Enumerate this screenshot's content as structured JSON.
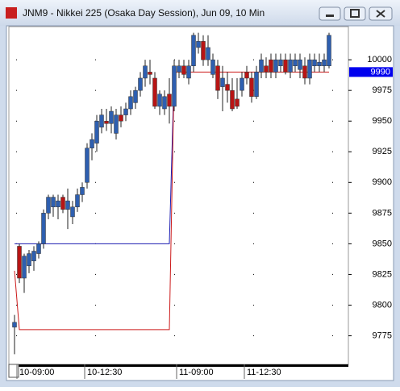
{
  "window_title": "JNM9 - Nikkei 225 (Osaka Day Session), Jun 09, 10 Min",
  "chart_data": {
    "type": "candlestick",
    "categories": [
      null,
      "10-09:00",
      null,
      null,
      null,
      null,
      null,
      null,
      null,
      null,
      null,
      null,
      null,
      null,
      null,
      "10-12:30",
      null,
      null,
      null,
      null,
      null,
      null,
      null,
      null,
      null,
      null,
      null,
      null,
      null,
      null,
      null,
      null,
      null,
      null,
      "11-09:00",
      null,
      null,
      null,
      null,
      null,
      null,
      null,
      null,
      null,
      null,
      null,
      null,
      null,
      "11-12:30",
      null,
      null,
      null,
      null,
      null,
      null,
      null,
      null,
      null,
      null,
      null,
      null,
      null,
      null,
      null,
      null,
      null
    ],
    "open": [
      9782,
      9848,
      9822,
      9832,
      9836,
      9842,
      9850,
      9875,
      9880,
      9880,
      9888,
      9878,
      9872,
      9880,
      9890,
      9900,
      9928,
      9932,
      9945,
      9950,
      9948,
      9940,
      9955,
      9955,
      9960,
      9965,
      9975,
      9985,
      9990,
      9985,
      9962,
      9960,
      9972,
      9962,
      9990,
      9995,
      9985,
      9995,
      10010,
      10015,
      10000,
      9988,
      9995,
      9978,
      9980,
      9975,
      9968,
      9975,
      9990,
      9985,
      9970,
      9990,
      9995,
      10000,
      9990,
      9995,
      10000,
      9990,
      9995,
      9992,
      9995,
      9985,
      9995,
      9995,
      9995,
      9995
    ],
    "high": [
      9792,
      9850,
      9842,
      9845,
      9848,
      9852,
      9878,
      9890,
      9890,
      9890,
      9890,
      9895,
      9885,
      9895,
      9900,
      9932,
      9940,
      9955,
      9960,
      9960,
      9962,
      9960,
      9962,
      9965,
      9975,
      9978,
      9990,
      10000,
      10000,
      9990,
      9975,
      9975,
      9985,
      10000,
      10000,
      10000,
      10000,
      10022,
      10022,
      10020,
      10020,
      10005,
      10000,
      9995,
      9990,
      9985,
      9985,
      9990,
      9995,
      9990,
      9995,
      10005,
      10002,
      10005,
      10005,
      10005,
      10005,
      10005,
      10005,
      10005,
      10002,
      10005,
      10005,
      10005,
      10005,
      10022
    ],
    "low": [
      9760,
      9818,
      9810,
      9826,
      9828,
      9838,
      9846,
      9870,
      9872,
      9870,
      9875,
      9862,
      9866,
      9876,
      9884,
      9895,
      9918,
      9925,
      9940,
      9942,
      9940,
      9935,
      9945,
      9950,
      9955,
      9960,
      9970,
      9978,
      9980,
      9960,
      9955,
      9955,
      9948,
      9958,
      9985,
      9985,
      9980,
      9990,
      10005,
      9995,
      9995,
      9985,
      9968,
      9958,
      9965,
      9958,
      9960,
      9970,
      9980,
      9965,
      9968,
      9985,
      9985,
      9985,
      9985,
      9990,
      9988,
      9985,
      9990,
      9985,
      9980,
      9980,
      9990,
      9990,
      9990,
      9993
    ],
    "close": [
      9786,
      9822,
      9840,
      9842,
      9844,
      9850,
      9875,
      9888,
      9888,
      9885,
      9878,
      9885,
      9880,
      9890,
      9896,
      9928,
      9935,
      9950,
      9955,
      9948,
      9958,
      9955,
      9950,
      9960,
      9970,
      9975,
      9985,
      9995,
      9988,
      9962,
      9972,
      9970,
      9962,
      9995,
      9995,
      9988,
      9995,
      10020,
      10015,
      10000,
      10010,
      10000,
      9975,
      9985,
      9975,
      9960,
      9962,
      9985,
      9985,
      9970,
      9990,
      10000,
      9990,
      9990,
      10000,
      10000,
      9990,
      10000,
      10000,
      10000,
      9985,
      10000,
      10000,
      9998,
      10000,
      10020
    ],
    "up_color": "#2e5fb0",
    "down_color": "#b81414",
    "lines": [
      {
        "color": "#1a1ab0",
        "values": [
          9850,
          9850,
          9850,
          9850,
          9850,
          9850,
          9850,
          9850,
          9850,
          9850,
          9850,
          9850,
          9850,
          9850,
          9850,
          9850,
          9850,
          9850,
          9850,
          9850,
          9850,
          9850,
          9850,
          9850,
          9850,
          9850,
          9850,
          9850,
          9850,
          9850,
          9850,
          9850,
          9850,
          9990,
          null,
          null,
          null,
          null,
          null,
          null,
          null,
          null,
          null,
          null,
          null,
          null,
          null,
          null,
          null,
          null,
          null,
          null,
          null,
          null,
          null,
          null,
          null,
          null,
          null,
          null,
          null,
          null,
          null,
          null,
          null,
          null
        ]
      },
      {
        "color": "#cc1a1a",
        "values": [
          9828,
          9780,
          9780,
          9780,
          9780,
          9780,
          9780,
          9780,
          9780,
          9780,
          9780,
          9780,
          9780,
          9780,
          9780,
          9780,
          9780,
          9780,
          9780,
          9780,
          9780,
          9780,
          9780,
          9780,
          9780,
          9780,
          9780,
          9780,
          9780,
          9780,
          9780,
          9780,
          9780,
          9990,
          9990,
          9990,
          9990,
          9990,
          9990,
          9990,
          9990,
          9990,
          9990,
          9990,
          9990,
          9990,
          9990,
          9990,
          9990,
          9990,
          9990,
          9990,
          9990,
          9990,
          9990,
          9990,
          9990,
          9990,
          9990,
          9990,
          9990,
          9990,
          9990,
          9990,
          9990,
          9990
        ]
      }
    ],
    "last_price": 9990,
    "last_price_color": "#0000ee",
    "ylim": [
      9753,
      10029
    ],
    "yticks": [
      9775,
      9800,
      9825,
      9850,
      9875,
      9900,
      9925,
      9950,
      9975,
      10000
    ]
  }
}
